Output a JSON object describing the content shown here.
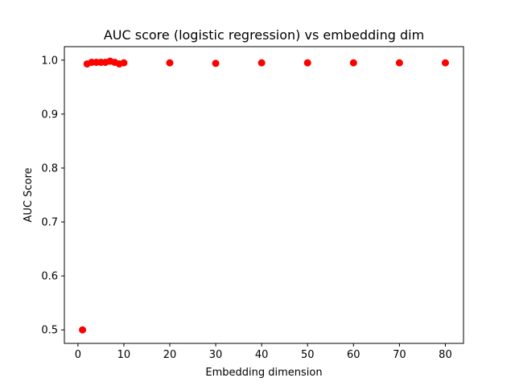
{
  "chart_data": {
    "type": "scatter",
    "title": "AUC score (logistic regression) vs embedding dim",
    "xlabel": "Embedding dimension",
    "ylabel": "AUC Score",
    "xlim": [
      -2.95,
      83.95
    ],
    "ylim": [
      0.475,
      1.025
    ],
    "xticks": [
      0,
      10,
      20,
      30,
      40,
      50,
      60,
      70,
      80
    ],
    "yticks": [
      0.5,
      0.6,
      0.7,
      0.8,
      0.9,
      1.0
    ],
    "xtick_labels": [
      "0",
      "10",
      "20",
      "30",
      "40",
      "50",
      "60",
      "70",
      "80"
    ],
    "ytick_labels": [
      "0.5",
      "0.6",
      "0.7",
      "0.8",
      "0.9",
      "1.0"
    ],
    "grid": false,
    "series": [
      {
        "color": "#ff0000",
        "marker": "circle",
        "points": [
          {
            "x": 1,
            "y": 0.5
          },
          {
            "x": 2,
            "y": 0.993
          },
          {
            "x": 3,
            "y": 0.996
          },
          {
            "x": 4,
            "y": 0.996
          },
          {
            "x": 5,
            "y": 0.996
          },
          {
            "x": 6,
            "y": 0.996
          },
          {
            "x": 7,
            "y": 0.998
          },
          {
            "x": 8,
            "y": 0.996
          },
          {
            "x": 9,
            "y": 0.993
          },
          {
            "x": 10,
            "y": 0.995
          },
          {
            "x": 20,
            "y": 0.995
          },
          {
            "x": 30,
            "y": 0.994
          },
          {
            "x": 40,
            "y": 0.995
          },
          {
            "x": 50,
            "y": 0.995
          },
          {
            "x": 60,
            "y": 0.995
          },
          {
            "x": 70,
            "y": 0.995
          },
          {
            "x": 80,
            "y": 0.995
          }
        ]
      }
    ]
  }
}
